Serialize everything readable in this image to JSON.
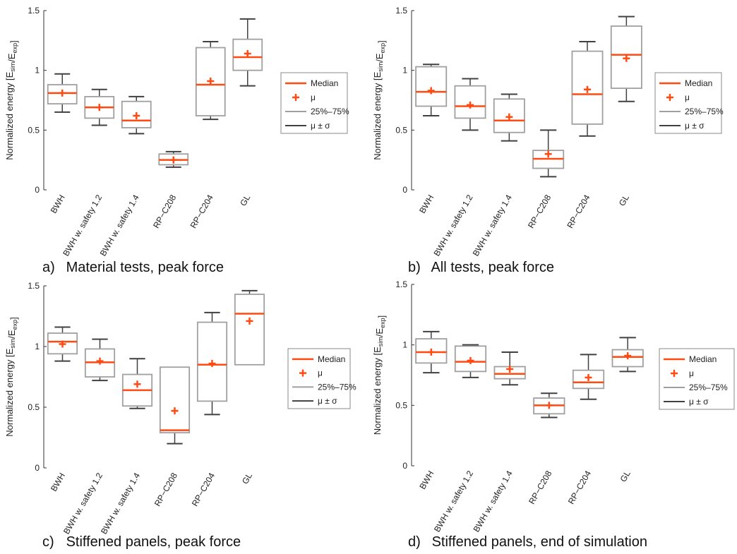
{
  "legend": {
    "median": "Median",
    "mean": "μ",
    "iqr": "25%–75%",
    "sigma": "μ ± σ"
  },
  "colors": {
    "median": "#ff4a12",
    "mean": "#ff4a12",
    "box": "#a0a0a0",
    "whisker": "#404040",
    "axis": "#333333"
  },
  "chart_data": [
    {
      "type": "box",
      "caption_letter": "a)",
      "caption_text": "Material tests, peak force",
      "ylabel": "Normalized energy [E_sim/E_exp]",
      "ylim": [
        0,
        1.5
      ],
      "yticks": [
        "0",
        "0.5",
        "1",
        "1.5"
      ],
      "categories": [
        "BWH",
        "BWH w. safety 1.2",
        "BWH w. safety 1.4",
        "RP−C208",
        "RP−C204",
        "GL"
      ],
      "q1": [
        0.72,
        0.6,
        0.52,
        0.21,
        0.62,
        1.0
      ],
      "q3": [
        0.88,
        0.78,
        0.74,
        0.3,
        1.19,
        1.26
      ],
      "median": [
        0.81,
        0.69,
        0.58,
        0.25,
        0.88,
        1.11
      ],
      "mean": [
        0.81,
        0.69,
        0.62,
        0.25,
        0.91,
        1.14
      ],
      "lower": [
        0.65,
        0.54,
        0.47,
        0.19,
        0.59,
        0.87
      ],
      "upper": [
        0.97,
        0.84,
        0.78,
        0.32,
        1.24,
        1.43
      ]
    },
    {
      "type": "box",
      "caption_letter": "b)",
      "caption_text": "All tests, peak force",
      "ylabel": "Normalized energy [E_sim/E_exp]",
      "ylim": [
        0,
        1.5
      ],
      "yticks": [
        "0",
        "0.5",
        "1",
        "1.5"
      ],
      "categories": [
        "BWH",
        "BWH w. safety 1.2",
        "BWH w. safety 1.4",
        "RP−C208",
        "RP−C204",
        "GL"
      ],
      "q1": [
        0.7,
        0.6,
        0.48,
        0.18,
        0.55,
        0.85
      ],
      "q3": [
        1.03,
        0.87,
        0.76,
        0.33,
        1.16,
        1.37
      ],
      "median": [
        0.82,
        0.7,
        0.58,
        0.26,
        0.8,
        1.13
      ],
      "mean": [
        0.83,
        0.71,
        0.61,
        0.3,
        0.84,
        1.1
      ],
      "lower": [
        0.62,
        0.5,
        0.41,
        0.11,
        0.45,
        0.74
      ],
      "upper": [
        1.05,
        0.93,
        0.8,
        0.5,
        1.24,
        1.45
      ]
    },
    {
      "type": "box",
      "caption_letter": "c)",
      "caption_text": "Stiffened panels, peak force",
      "ylabel": "Normalized energy [E_sim/E_exp]",
      "ylim": [
        0,
        1.5
      ],
      "yticks": [
        "0",
        "0.5",
        "1",
        "1.5"
      ],
      "categories": [
        "BWH",
        "BWH w. safety 1.2",
        "BWH w. safety 1.4",
        "RP−C208",
        "RP−C204",
        "GL"
      ],
      "q1": [
        0.94,
        0.75,
        0.51,
        0.29,
        0.55,
        0.85
      ],
      "q3": [
        1.11,
        0.98,
        0.77,
        0.83,
        1.2,
        1.43
      ],
      "median": [
        1.04,
        0.87,
        0.64,
        0.31,
        0.85,
        1.27
      ],
      "mean": [
        1.02,
        0.88,
        0.69,
        0.47,
        0.86,
        1.21
      ],
      "lower": [
        0.88,
        0.72,
        0.49,
        0.2,
        0.44,
        0.9
      ],
      "upper": [
        1.16,
        1.06,
        0.9,
        0.74,
        1.28,
        1.46
      ]
    },
    {
      "type": "box",
      "caption_letter": "d)",
      "caption_text": "Stiffened panels, end of simulation",
      "ylabel": "Normalized energy [E_sim/E_exp]",
      "ylim": [
        0,
        1.5
      ],
      "yticks": [
        "0",
        "0.5",
        "1",
        "1.5"
      ],
      "categories": [
        "BWH",
        "BWH w. safety 1.2",
        "BWH w. safety 1.4",
        "RP−C208",
        "RP−C204",
        "GL"
      ],
      "q1": [
        0.85,
        0.78,
        0.72,
        0.43,
        0.64,
        0.82
      ],
      "q3": [
        1.05,
        0.99,
        0.82,
        0.56,
        0.79,
        0.96
      ],
      "median": [
        0.94,
        0.86,
        0.76,
        0.5,
        0.69,
        0.9
      ],
      "mean": [
        0.94,
        0.87,
        0.8,
        0.5,
        0.73,
        0.91
      ],
      "lower": [
        0.77,
        0.73,
        0.67,
        0.4,
        0.55,
        0.78
      ],
      "upper": [
        1.11,
        1.0,
        0.94,
        0.6,
        0.92,
        1.06
      ]
    }
  ]
}
